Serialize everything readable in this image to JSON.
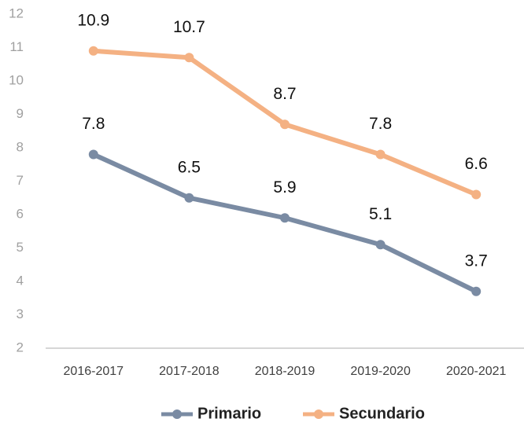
{
  "chart_data": {
    "type": "line",
    "categories": [
      "2016-2017",
      "2017-2018",
      "2018-2019",
      "2019-2020",
      "2020-2021"
    ],
    "series": [
      {
        "name": "Primario",
        "color": "#7a8ba3",
        "values": [
          7.8,
          6.5,
          5.9,
          5.1,
          3.7
        ]
      },
      {
        "name": "Secundario",
        "color": "#f4b183",
        "values": [
          10.9,
          10.7,
          8.7,
          7.8,
          6.6
        ]
      }
    ],
    "ylim": [
      2,
      12
    ],
    "yticks": [
      2,
      3,
      4,
      5,
      6,
      7,
      8,
      9,
      10,
      11,
      12
    ],
    "grid": false,
    "legend": "bottom"
  }
}
